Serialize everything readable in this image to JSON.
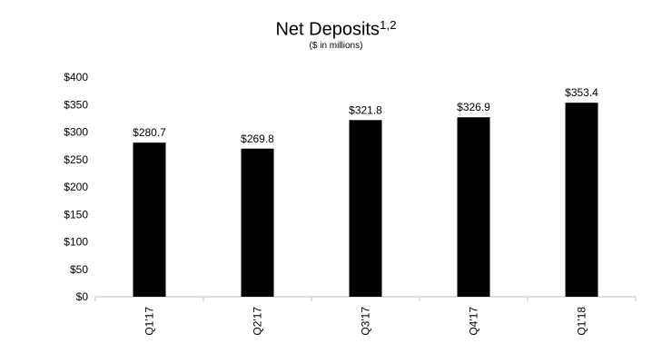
{
  "chart_data": {
    "type": "bar",
    "title": "Net Deposits",
    "title_superscript": "1,2",
    "subtitle": "($ in millions)",
    "categories": [
      "Q1'17",
      "Q2'17",
      "Q3'17",
      "Q4'17",
      "Q1'18"
    ],
    "values": [
      280.7,
      269.8,
      321.8,
      326.9,
      353.4
    ],
    "data_labels": [
      "$280.7",
      "$269.8",
      "$321.8",
      "$326.9",
      "$353.4"
    ],
    "ylim": [
      0,
      400
    ],
    "yticks": [
      0,
      50,
      100,
      150,
      200,
      250,
      300,
      350,
      400
    ],
    "ytick_labels": [
      "$0",
      "$50",
      "$100",
      "$150",
      "$200",
      "$250",
      "$300",
      "$350",
      "$400"
    ],
    "grid": false,
    "bar_color": "#000000",
    "axis_color": "#bfbfbf"
  }
}
